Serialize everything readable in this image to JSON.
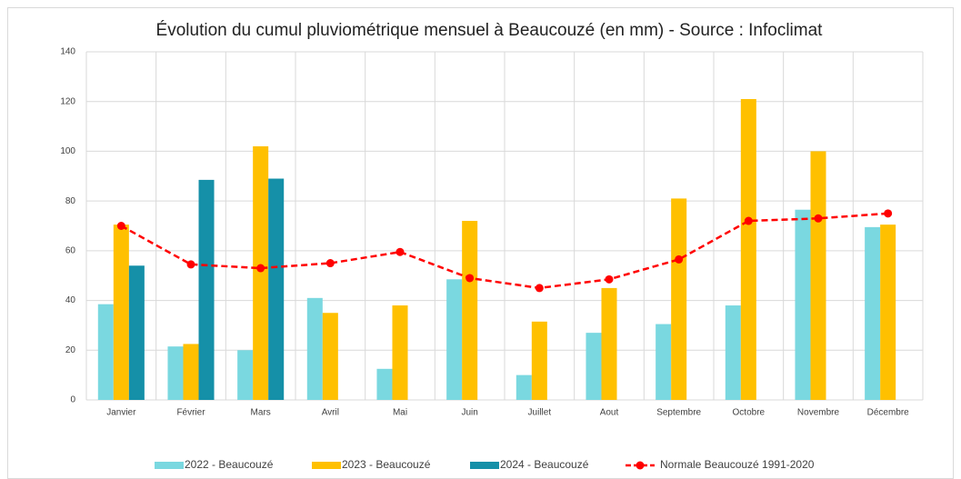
{
  "chart_data": {
    "type": "bar",
    "title": "Évolution du cumul pluviométrique mensuel à Beaucouzé (en mm) - Source : Infoclimat",
    "categories": [
      "Janvier",
      "Février",
      "Mars",
      "Avril",
      "Mai",
      "Juin",
      "Juillet",
      "Aout",
      "Septembre",
      "Octobre",
      "Novembre",
      "Décembre"
    ],
    "series": [
      {
        "name": "2022  - Beaucouzé",
        "color": "#7ad8e0",
        "type": "bar",
        "values": [
          38.5,
          21.5,
          20,
          41,
          12.5,
          48.5,
          10,
          27,
          30.5,
          38,
          76.5,
          69.5
        ]
      },
      {
        "name": "2023  - Beaucouzé",
        "color": "#ffc000",
        "type": "bar",
        "values": [
          70.5,
          22.5,
          102,
          35,
          38,
          72,
          31.5,
          45,
          81,
          121,
          100,
          70.5
        ]
      },
      {
        "name": "2024  - Beaucouzé",
        "color": "#1590a8",
        "type": "bar",
        "values": [
          54,
          88.5,
          89,
          null,
          null,
          null,
          null,
          null,
          null,
          null,
          null,
          null
        ]
      },
      {
        "name": "Normale Beaucouzé 1991-2020",
        "color": "#ff0000",
        "type": "line",
        "values": [
          70,
          54.5,
          53,
          55,
          59.5,
          49,
          45,
          48.5,
          56.5,
          72,
          73,
          75
        ]
      }
    ],
    "ylim": [
      0,
      140
    ],
    "yticks": [
      0,
      20,
      40,
      60,
      80,
      100,
      120,
      140
    ],
    "grid": true,
    "legend": "bottom"
  }
}
